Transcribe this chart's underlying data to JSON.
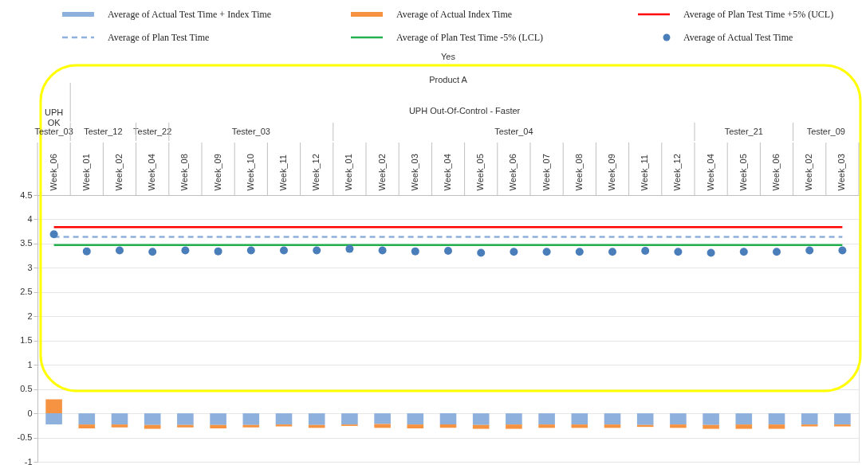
{
  "chart_data": {
    "type": "bar",
    "stacked": true,
    "categories": [
      "Week_06",
      "Week_01",
      "Week_02",
      "Week_04",
      "Week_08",
      "Week_09",
      "Week_10",
      "Week_11",
      "Week_12",
      "Week_01",
      "Week_02",
      "Week_03",
      "Week_04",
      "Week_05",
      "Week_06",
      "Week_07",
      "Week_08",
      "Week_09",
      "Week_11",
      "Week_12",
      "Week_04",
      "Week_05",
      "Week_06",
      "Week_02",
      "Week_03"
    ],
    "series": [
      {
        "name": "Average of Actual Test Time + Index Time",
        "color": "#8eb0dc",
        "values": [
          -0.23,
          -0.23,
          -0.23,
          -0.24,
          -0.24,
          -0.24,
          -0.24,
          -0.23,
          -0.24,
          -0.23,
          -0.22,
          -0.23,
          -0.23,
          -0.24,
          -0.23,
          -0.23,
          -0.23,
          -0.23,
          -0.24,
          -0.23,
          -0.24,
          -0.23,
          -0.23,
          -0.23,
          -0.23
        ]
      },
      {
        "name": "Average of Actual Index Time",
        "color": "#f59343",
        "values": [
          0.29,
          -0.08,
          -0.06,
          -0.08,
          -0.05,
          -0.07,
          -0.05,
          -0.04,
          -0.06,
          -0.03,
          -0.08,
          -0.08,
          -0.07,
          -0.08,
          -0.09,
          -0.07,
          -0.07,
          -0.07,
          -0.04,
          -0.07,
          -0.08,
          -0.09,
          -0.09,
          -0.04,
          -0.04
        ]
      },
      {
        "name": "Average of Plan Test Time +5% (UCL)",
        "type": "line",
        "color": "#ff0000",
        "line_style": "solid",
        "values": [
          3.84,
          3.84,
          3.84,
          3.84,
          3.84,
          3.84,
          3.84,
          3.84,
          3.84,
          3.84,
          3.84,
          3.84,
          3.84,
          3.84,
          3.84,
          3.84,
          3.84,
          3.84,
          3.84,
          3.84,
          3.84,
          3.84,
          3.84,
          3.84,
          3.84
        ]
      },
      {
        "name": "Average of Plan Test Time",
        "type": "line",
        "color": "#8eb0dc",
        "line_style": "dashed",
        "values": [
          3.64,
          3.64,
          3.64,
          3.64,
          3.64,
          3.64,
          3.64,
          3.64,
          3.64,
          3.64,
          3.64,
          3.64,
          3.64,
          3.64,
          3.64,
          3.64,
          3.64,
          3.64,
          3.64,
          3.64,
          3.64,
          3.64,
          3.64,
          3.64,
          3.64
        ]
      },
      {
        "name": "Average of Plan Test Time -5% (LCL)",
        "type": "line",
        "color": "#22b14c",
        "line_style": "solid",
        "values": [
          3.47,
          3.47,
          3.47,
          3.47,
          3.47,
          3.47,
          3.47,
          3.47,
          3.47,
          3.47,
          3.47,
          3.47,
          3.47,
          3.47,
          3.47,
          3.47,
          3.47,
          3.47,
          3.47,
          3.47,
          3.47,
          3.47,
          3.47,
          3.47,
          3.47
        ]
      },
      {
        "name": "Average of Actual Test Time",
        "type": "scatter",
        "marker": "circle",
        "color": "#4a7ebb",
        "values": [
          3.69,
          3.34,
          3.36,
          3.33,
          3.36,
          3.34,
          3.36,
          3.36,
          3.36,
          3.39,
          3.36,
          3.34,
          3.35,
          3.31,
          3.33,
          3.33,
          3.33,
          3.33,
          3.35,
          3.33,
          3.31,
          3.33,
          3.33,
          3.36,
          3.36
        ]
      }
    ],
    "annotations": [
      "Yes",
      "Product A",
      "UPH OK",
      "UPH Out-Of-Control - Faster",
      "Tester_03",
      "Tester_12",
      "Tester_22",
      "Tester_03",
      "Tester_04",
      "Tester_21",
      "Tester_09"
    ],
    "ylim": [
      -1,
      4.5
    ],
    "yticks": [
      -1,
      -0.5,
      0,
      0.5,
      1,
      1.5,
      2,
      2.5,
      3,
      3.5,
      4,
      4.5
    ],
    "grid": "y",
    "legend": "top"
  }
}
